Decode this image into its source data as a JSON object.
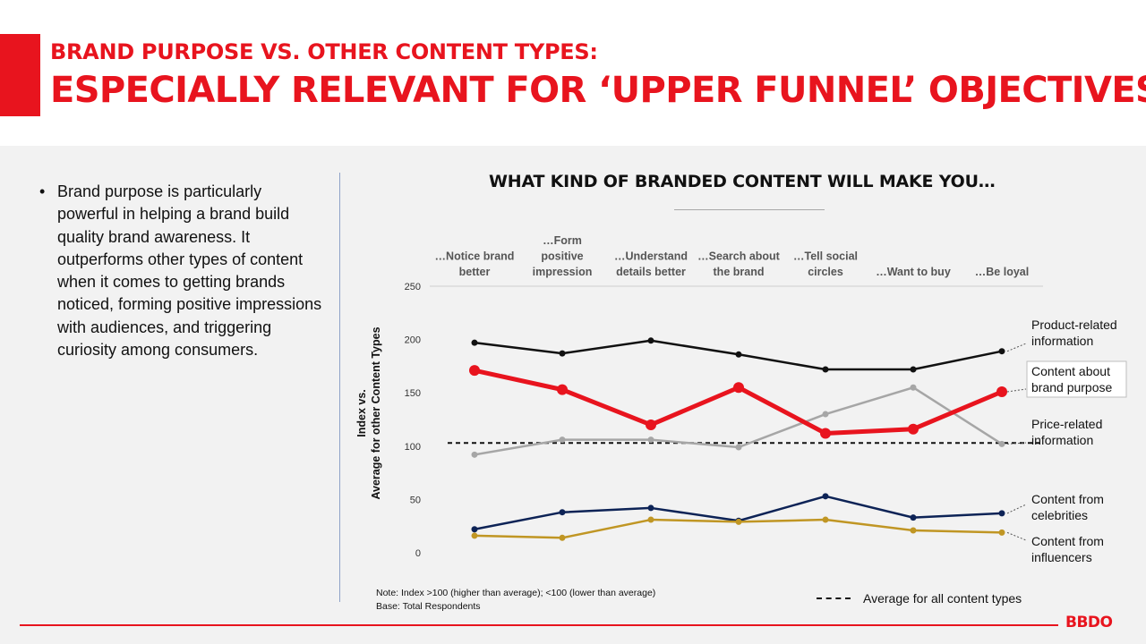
{
  "header": {
    "title_line1": "BRAND PURPOSE VS. OTHER CONTENT TYPES:",
    "title_line2": "ESPECIALLY RELEVANT FOR ‘UPPER FUNNEL’ OBJECTIVES"
  },
  "bullets": [
    "Brand purpose is particularly powerful in helping a brand build quality brand awareness. It outperforms other types of content when it comes to getting brands noticed, forming positive impressions with audiences, and triggering curiosity among consumers."
  ],
  "notes": {
    "line1": "Note: Index >100 (higher than average); <100 (lower than average)",
    "line2": "Base: Total Respondents"
  },
  "legend": {
    "average_label": "Average for all content types"
  },
  "logo": "BBDO",
  "colors": {
    "accent": "#e8141e",
    "product": "#111111",
    "brand_purpose": "#e8141e",
    "price": "#a6a6a6",
    "celebrities": "#0d2356",
    "influencers": "#c09624"
  },
  "chart_data": {
    "type": "line",
    "title": "WHAT KIND OF BRANDED CONTENT WILL MAKE YOU…",
    "ylabel": "Index vs. Average for other Content Types",
    "ylim": [
      0,
      250
    ],
    "yticks": [
      0,
      50,
      100,
      150,
      200,
      250
    ],
    "grid": false,
    "categories": [
      [
        "…Notice brand",
        "better"
      ],
      [
        "…Form",
        "positive",
        "impression"
      ],
      [
        "…Understand",
        "details better"
      ],
      [
        "…Search about",
        "the brand"
      ],
      [
        "…Tell social",
        "circles"
      ],
      [
        "…Want to buy"
      ],
      [
        "…Be loyal"
      ]
    ],
    "series": [
      {
        "name": "Product-related information",
        "label_lines": [
          "Product-related",
          "information"
        ],
        "color": "#111111",
        "width": 2.5,
        "marker": 3.5,
        "values": [
          197,
          187,
          199,
          186,
          172,
          172,
          189
        ]
      },
      {
        "name": "Content about brand purpose",
        "label_lines": [
          "Content about",
          "brand purpose"
        ],
        "color": "#e8141e",
        "width": 5,
        "marker": 6,
        "boxed": true,
        "values": [
          171,
          153,
          120,
          155,
          112,
          116,
          151
        ]
      },
      {
        "name": "Price-related information",
        "label_lines": [
          "Price-related",
          "information"
        ],
        "color": "#a6a6a6",
        "width": 2.5,
        "marker": 3.5,
        "values": [
          92,
          106,
          106,
          99,
          130,
          155,
          102
        ]
      },
      {
        "name": "Content from celebrities",
        "label_lines": [
          "Content from",
          "celebrities"
        ],
        "color": "#0d2356",
        "width": 2.5,
        "marker": 3.5,
        "values": [
          22,
          38,
          42,
          30,
          53,
          33,
          37
        ]
      },
      {
        "name": "Content from influencers",
        "label_lines": [
          "Content from",
          "influencers"
        ],
        "color": "#c09624",
        "width": 2.5,
        "marker": 3.5,
        "values": [
          16,
          14,
          31,
          29,
          31,
          21,
          19
        ]
      }
    ],
    "average_line": {
      "name": "Average for all content types",
      "value": 103
    }
  }
}
